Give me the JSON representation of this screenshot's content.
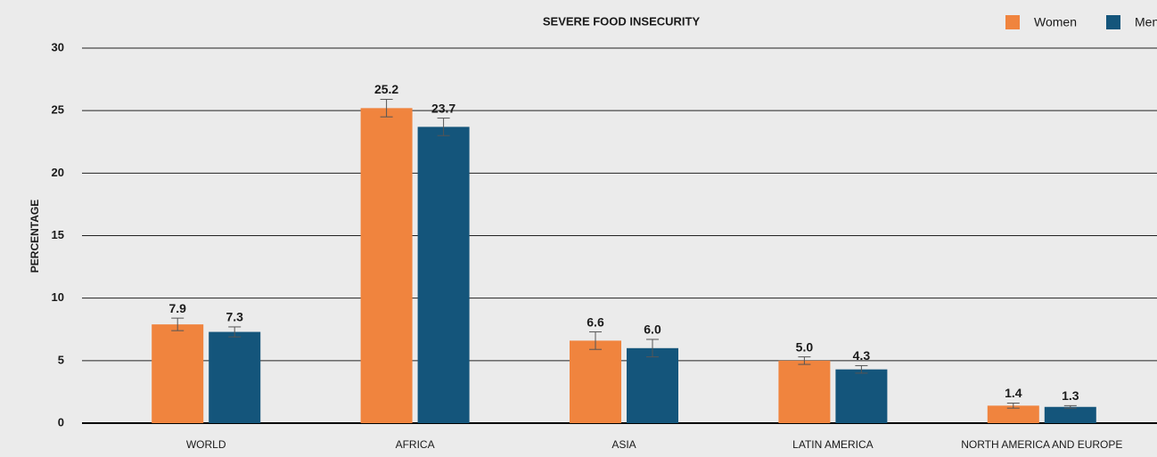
{
  "chart_data": {
    "type": "bar",
    "title": "SEVERE FOOD INSECURITY",
    "ylabel": "PERCENTAGE",
    "categories": [
      "WORLD",
      "AFRICA",
      "ASIA",
      "LATIN AMERICA",
      "NORTH AMERICA AND EUROPE"
    ],
    "series": [
      {
        "name": "Women",
        "color": "#f0843e",
        "values": [
          7.9,
          25.2,
          6.6,
          5.0,
          1.4
        ],
        "value_labels": [
          "7.9",
          "25.2",
          "6.6",
          "5.0",
          "1.4"
        ],
        "errors": [
          0.5,
          0.7,
          0.7,
          0.3,
          0.2
        ]
      },
      {
        "name": "Men",
        "color": "#14557b",
        "values": [
          7.3,
          23.7,
          6.0,
          4.3,
          1.3
        ],
        "value_labels": [
          "7.3",
          "23.7",
          "6.0",
          "4.3",
          "1.3"
        ],
        "errors": [
          0.4,
          0.7,
          0.7,
          0.3,
          0.1
        ]
      }
    ],
    "ylim": [
      0,
      30
    ],
    "yticks": [
      0,
      5,
      10,
      15,
      20,
      25,
      30
    ],
    "grid": true,
    "legend": "top-right"
  }
}
